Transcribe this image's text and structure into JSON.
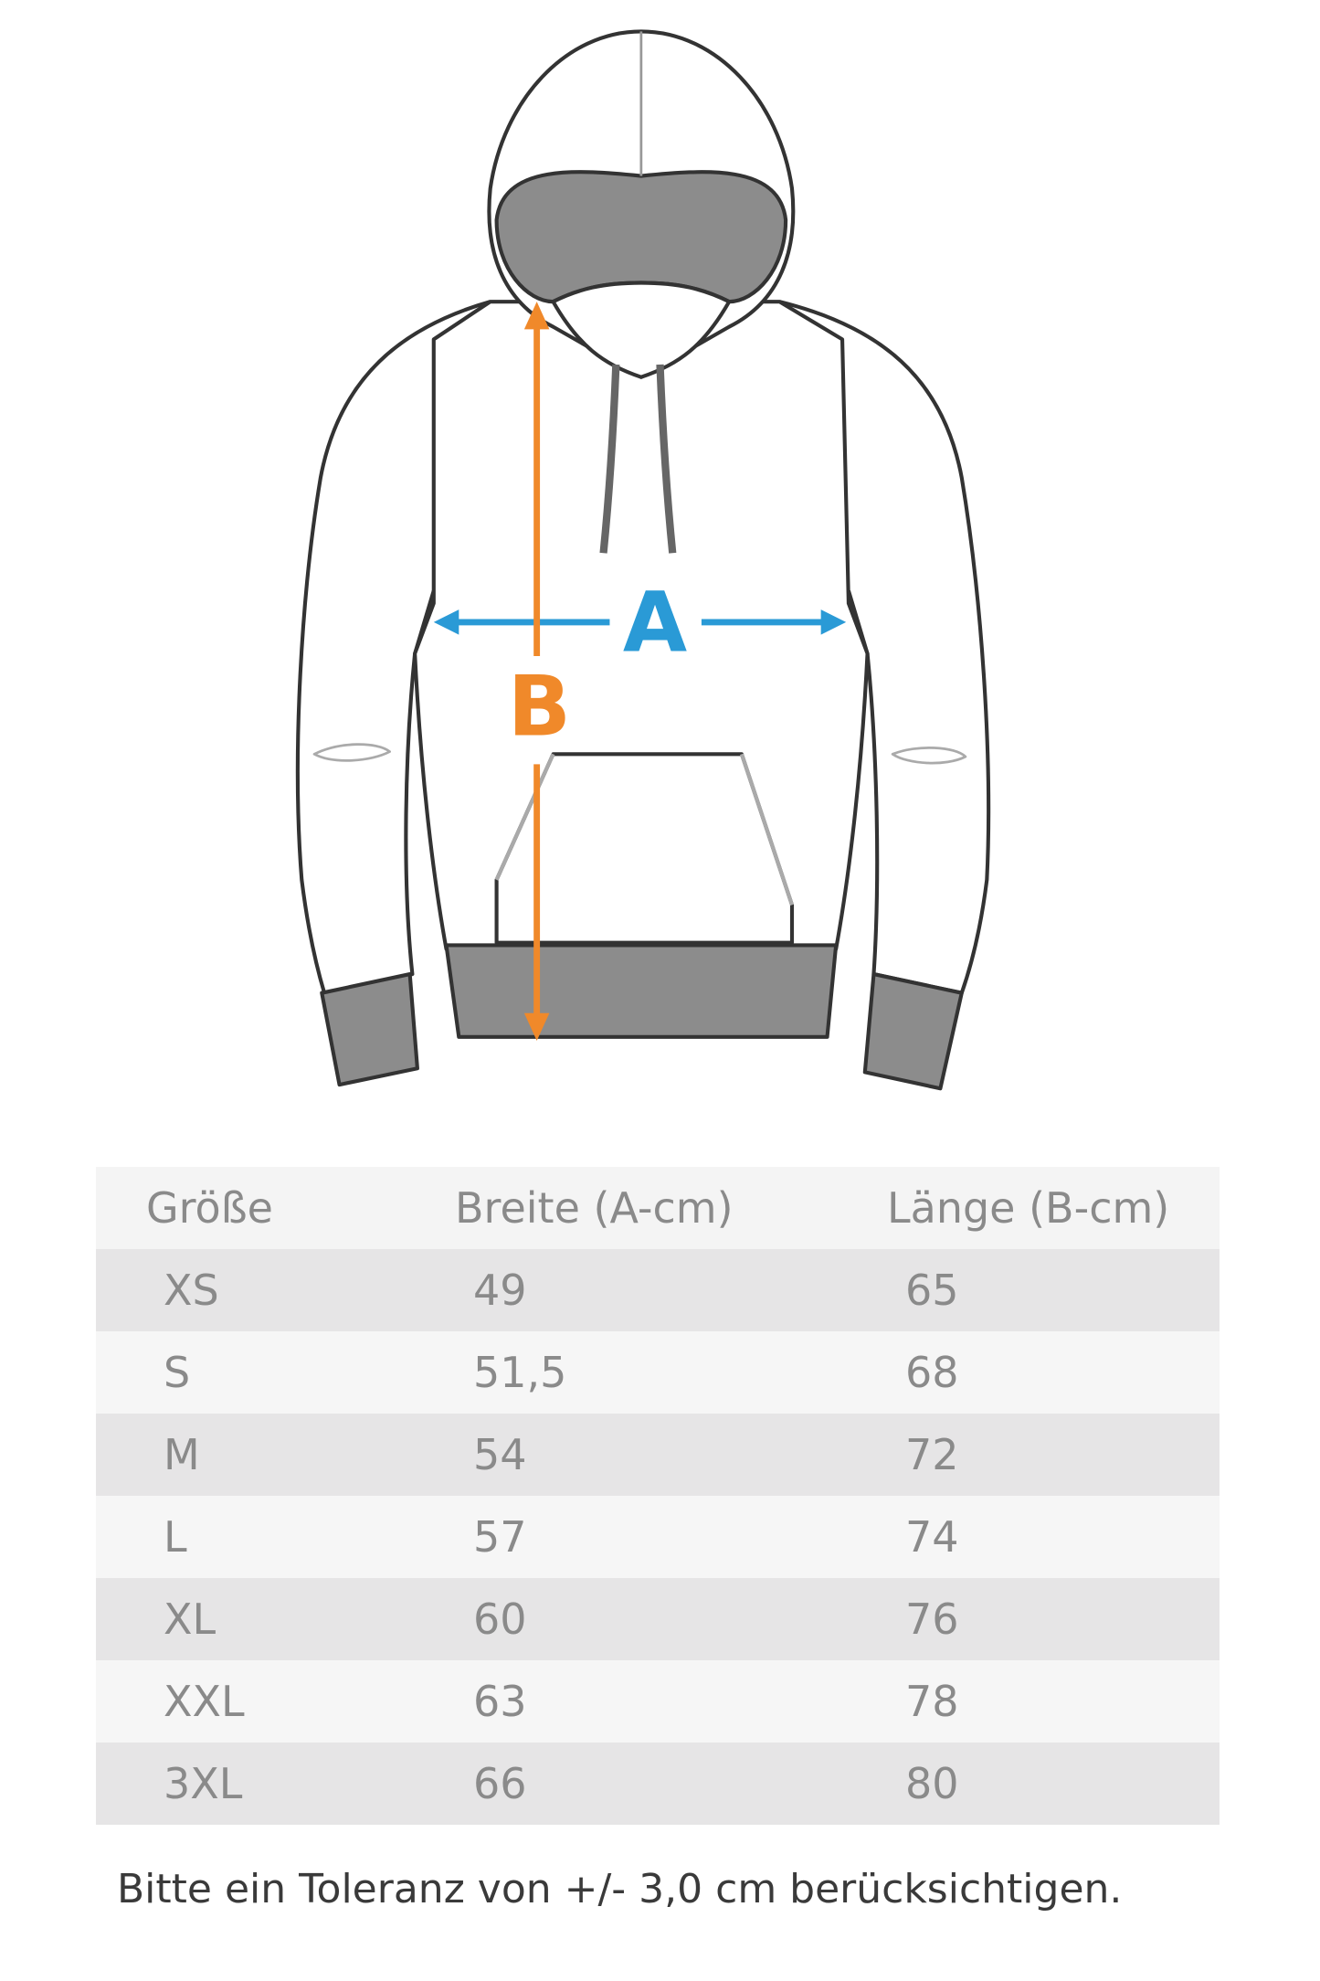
{
  "figure": {
    "label_a": "A",
    "label_b": "B",
    "colors": {
      "a_arrow": "#2a9ad6",
      "b_arrow": "#f0892a",
      "trim": "#8c8c8c",
      "outline": "#333333"
    }
  },
  "table": {
    "headers": [
      "Größe",
      "Breite (A-cm)",
      "Länge (B-cm)"
    ],
    "rows": [
      [
        "XS",
        "49",
        "65"
      ],
      [
        "S",
        "51,5",
        "68"
      ],
      [
        "M",
        "54",
        "72"
      ],
      [
        "L",
        "57",
        "74"
      ],
      [
        "XL",
        "60",
        "76"
      ],
      [
        "XXL",
        "63",
        "78"
      ],
      [
        "3XL",
        "66",
        "80"
      ]
    ]
  },
  "note": "Bitte ein Toleranz von +/- 3,0 cm berücksichtigen."
}
